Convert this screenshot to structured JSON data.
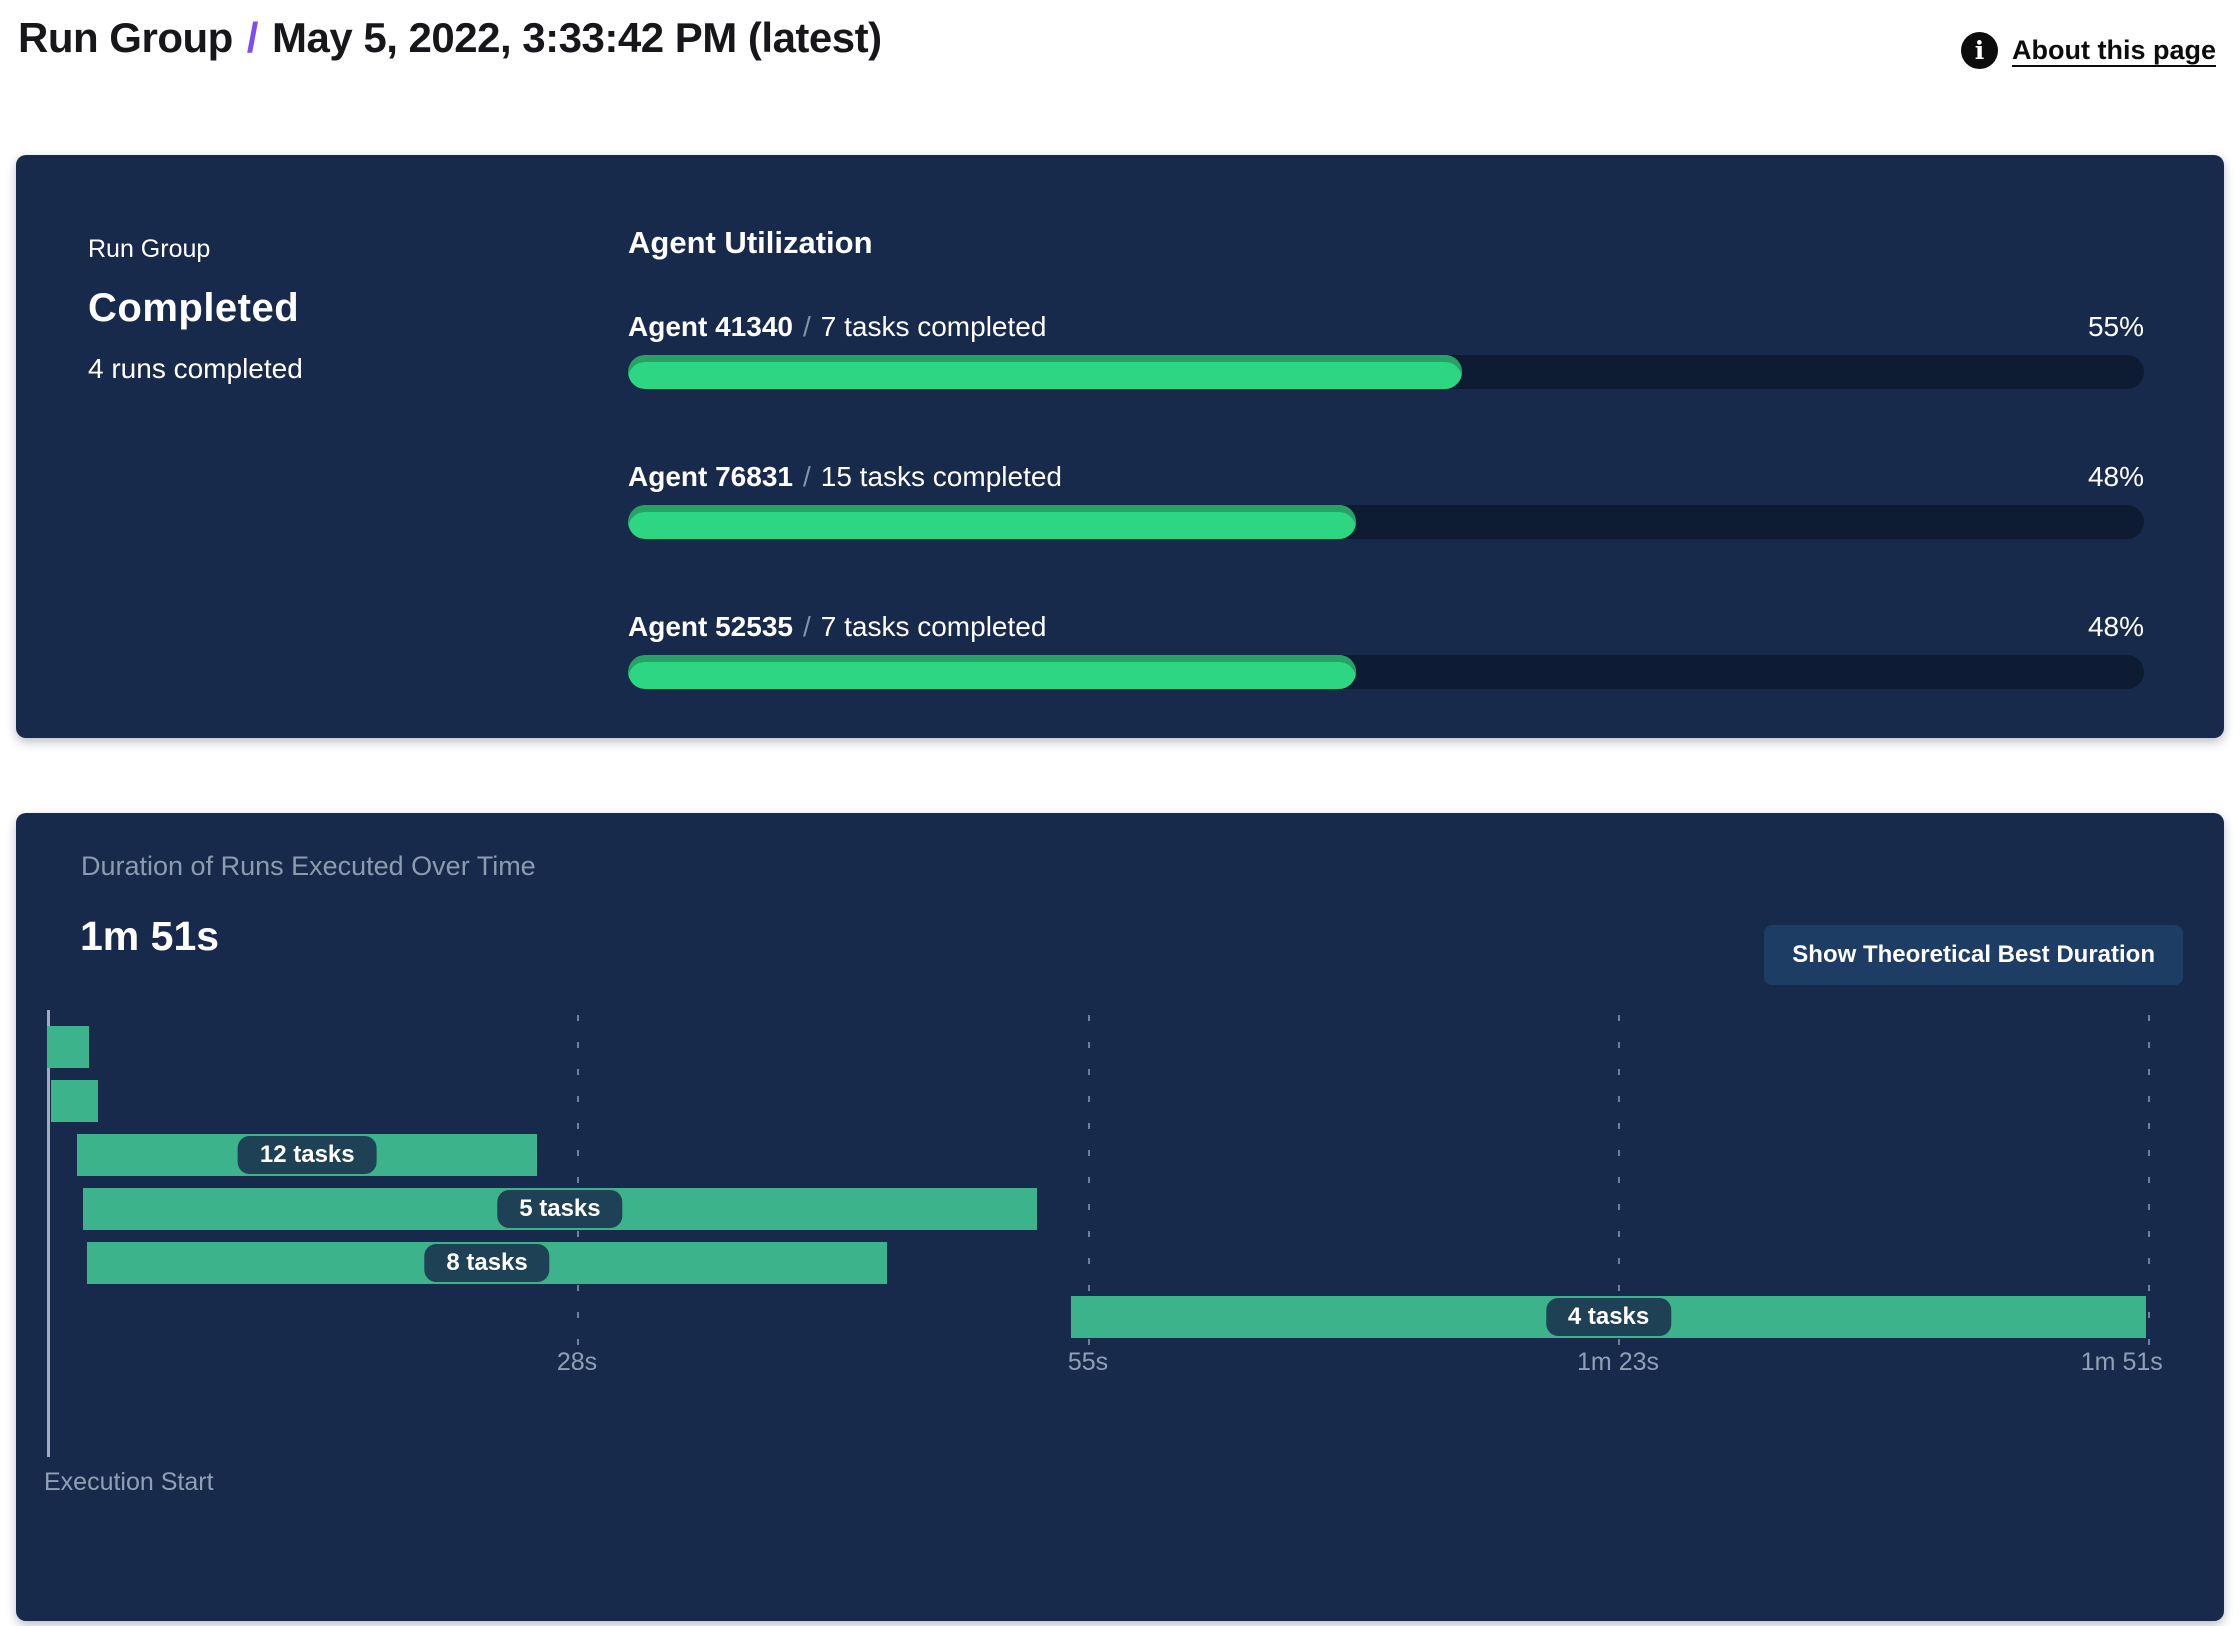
{
  "header": {
    "breadcrumb_root": "Run Group",
    "separator": "/",
    "title": "May 5, 2022, 3:33:42 PM (latest)",
    "about_link": "About this page",
    "info_icon_glyph": "i"
  },
  "summary_card": {
    "eyebrow": "Run Group",
    "status": "Completed",
    "subtext": "4 runs completed"
  },
  "agent_utilization": {
    "heading": "Agent Utilization",
    "agents": [
      {
        "name": "Agent 41340",
        "slash": "/",
        "detail": "7 tasks completed",
        "percent_label": "55%"
      },
      {
        "name": "Agent 76831",
        "slash": "/",
        "detail": "15 tasks completed",
        "percent_label": "48%"
      },
      {
        "name": "Agent 52535",
        "slash": "/",
        "detail": "7 tasks completed",
        "percent_label": "48%"
      }
    ]
  },
  "duration_card": {
    "title": "Duration of Runs Executed Over Time",
    "total_duration": "1m 51s",
    "button_label": "Show Theoretical Best Duration",
    "axis_caption": "Execution Start"
  },
  "chart_data": [
    {
      "type": "bar",
      "title": "Agent Utilization",
      "categories": [
        "Agent 41340",
        "Agent 76831",
        "Agent 52535"
      ],
      "values": [
        55,
        48,
        48
      ],
      "unit": "%",
      "annotations": [
        "7 tasks completed",
        "15 tasks completed",
        "7 tasks completed"
      ],
      "xlim": [
        0,
        100
      ],
      "legend_position": "none",
      "grid": false
    },
    {
      "type": "gantt",
      "title": "Duration of Runs Executed Over Time",
      "time_unit": "seconds",
      "total_seconds": 111,
      "total_label": "1m 51s",
      "xlabel": "Execution Start",
      "grid": true,
      "ticks": [
        {
          "t": 28,
          "label": "28s"
        },
        {
          "t": 55,
          "label": "55s"
        },
        {
          "t": 83,
          "label": "1m 23s"
        },
        {
          "t": 111,
          "label": "1m 51s"
        }
      ],
      "runs": [
        {
          "start": 0,
          "end": 2.2,
          "label": "",
          "tasks": null
        },
        {
          "start": 0.2,
          "end": 2.7,
          "label": "",
          "tasks": null
        },
        {
          "start": 1.6,
          "end": 25.9,
          "label": "12 tasks",
          "tasks": 12
        },
        {
          "start": 1.9,
          "end": 52.3,
          "label": "5 tasks",
          "tasks": 5
        },
        {
          "start": 2.1,
          "end": 44.4,
          "label": "8 tasks",
          "tasks": 8
        },
        {
          "start": 54.1,
          "end": 110.9,
          "label": "4 tasks",
          "tasks": 4
        }
      ]
    }
  ],
  "colors": {
    "page_bg": "#ffffff",
    "card_bg": "#172a4c",
    "accent_purple": "#7c4df0",
    "progress_fill": "#2dd781",
    "progress_fill_shade": "#28a167",
    "progress_track": "#0d1c33",
    "gantt_bar": "#3db38c",
    "pill_bg": "#1f4156",
    "muted_text": "#8b9bb1",
    "axis_line": "#b9c4d4",
    "button_bg": "#1e3d64"
  }
}
